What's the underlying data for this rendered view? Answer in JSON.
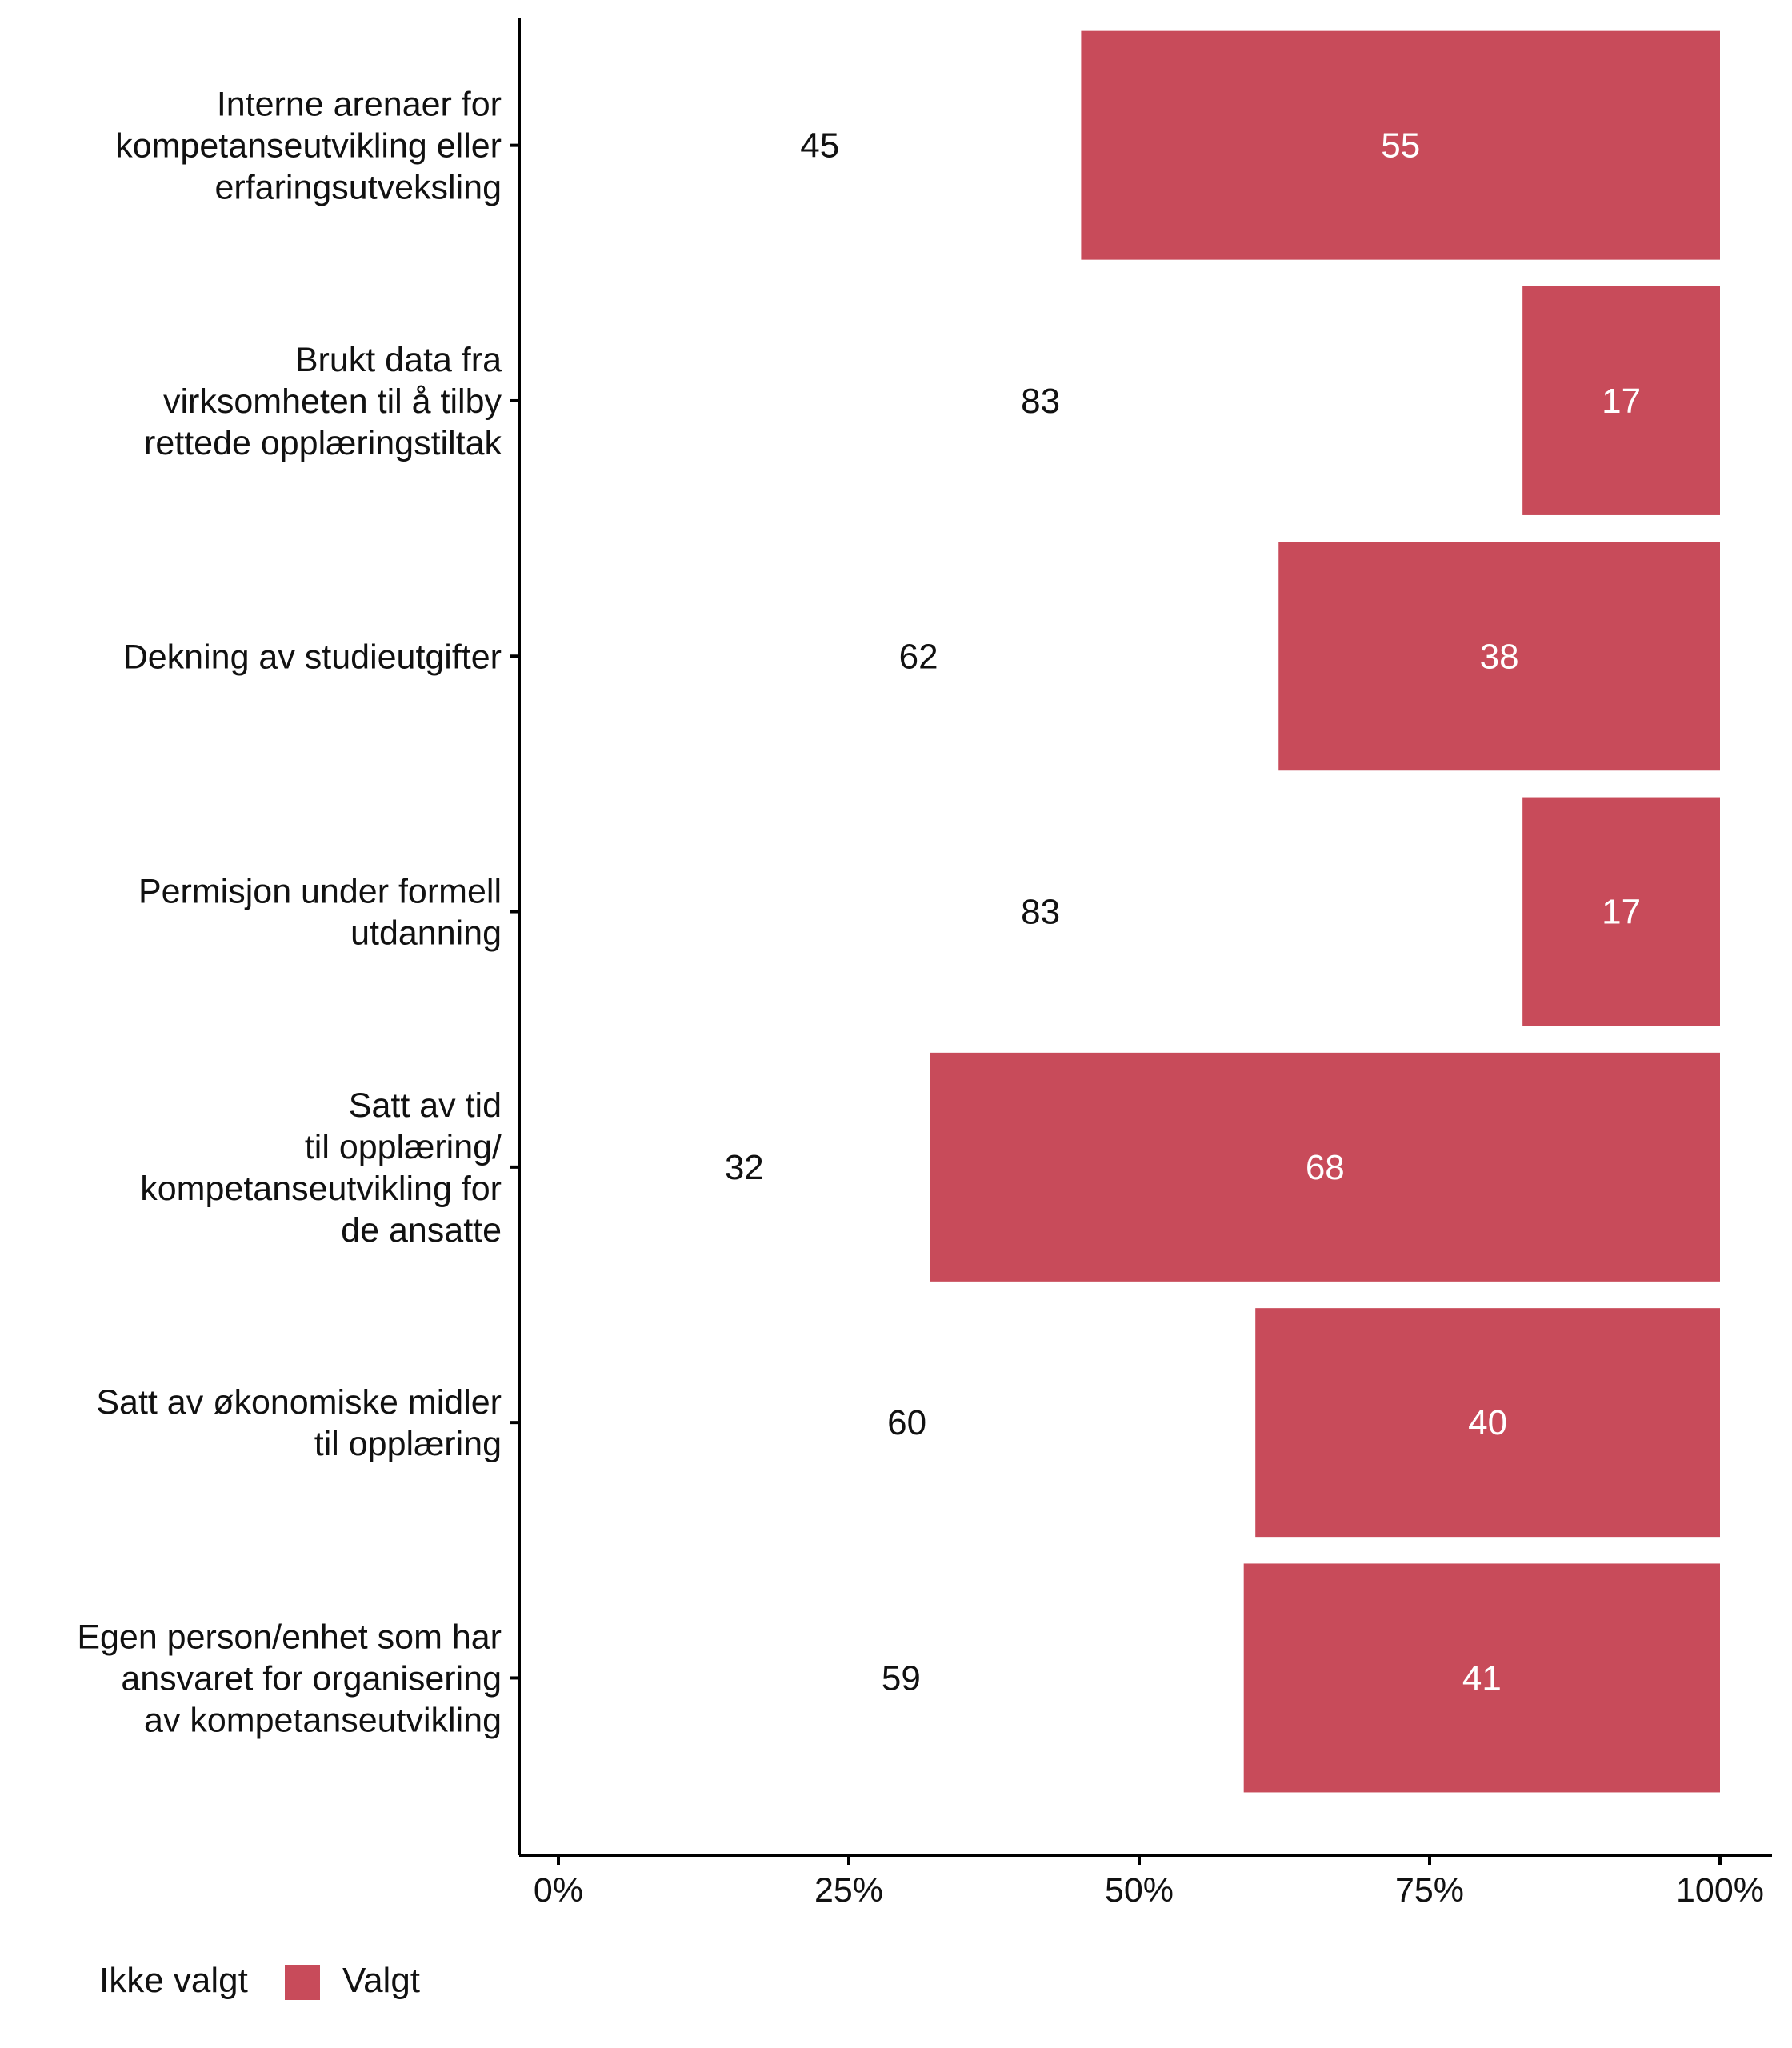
{
  "chart_data": {
    "type": "bar",
    "orientation": "horizontal",
    "stacked": true,
    "categories": [
      [
        "Interne arenaer for",
        "kompetanseutvikling eller",
        "erfaringsutveksling"
      ],
      [
        "Brukt data fra",
        "virksomheten til å tilby",
        "rettede opplæringstiltak"
      ],
      [
        "Dekning av studieutgifter"
      ],
      [
        "Permisjon under formell",
        "utdanning"
      ],
      [
        "Satt av tid",
        "til opplæring/",
        "kompetanseutvikling for",
        "de ansatte"
      ],
      [
        "Satt av økonomiske midler",
        "til opplæring"
      ],
      [
        "Egen person/enhet som har",
        "ansvaret for organisering",
        "av kompetanseutvikling"
      ]
    ],
    "series": [
      {
        "name": "Ikke valgt",
        "color": "#ffffff",
        "label_color": "#111111",
        "values": [
          45,
          83,
          62,
          83,
          32,
          60,
          59
        ]
      },
      {
        "name": "Valgt",
        "color": "#c84b5a",
        "label_color": "#ffffff",
        "values": [
          55,
          17,
          38,
          17,
          68,
          40,
          41
        ]
      }
    ],
    "xaxis": {
      "range": [
        0,
        100
      ],
      "ticks": [
        0,
        25,
        50,
        75,
        100
      ],
      "tick_labels": [
        "0%",
        "25%",
        "50%",
        "75%",
        "100%"
      ]
    },
    "legend": {
      "position": "bottom-left",
      "labels": [
        "Ikke valgt",
        "Valgt"
      ]
    },
    "grid": false,
    "title": "",
    "xlabel": "",
    "ylabel": ""
  }
}
